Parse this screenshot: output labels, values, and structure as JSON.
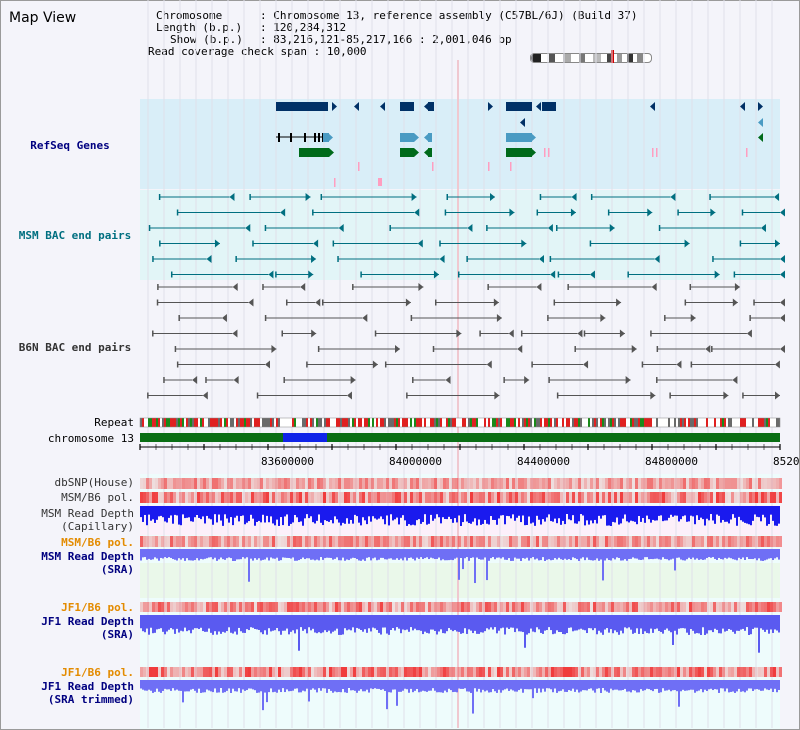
{
  "header": {
    "title": "Map View",
    "chromosome_label": "Chromosome",
    "chromosome_value": ": Chromosome 13, reference assembly (C57BL/6J) (Build 37)",
    "length_label": "Length (b.p.)",
    "length_value": ": 120,284,312",
    "show_label": "Show (b.p.)",
    "show_value": ": 83,216,121-85,217,166 : 2,001,046 bp",
    "span_label": "Read coverage check span",
    "span_value": ": 10,000"
  },
  "tracks": {
    "refseq": "RefSeq Genes",
    "msm_bac": "MSM BAC end pairs",
    "b6n_bac": "B6N BAC end pairs",
    "repeat": "Repeat",
    "chromosome": "chromosome 13",
    "dbsnp": "dbSNP(House)",
    "msm_b6_pol": "MSM/B6 pol.",
    "msm_depth_cap_1": "MSM Read Depth",
    "msm_depth_cap_2": "(Capillary)",
    "msm_b6_pol_2": "MSM/B6 pol.",
    "msm_depth_sra_1": "MSM Read Depth",
    "msm_depth_sra_2": "(SRA)",
    "jf1_b6_pol": "JF1/B6 pol.",
    "jf1_depth_sra_1": "JF1 Read Depth",
    "jf1_depth_sra_2": "(SRA)",
    "jf1_b6_pol_2": "JF1/B6 pol.",
    "jf1_depth_trim_1": "JF1 Read Depth",
    "jf1_depth_trim_2": "(SRA trimmed)"
  },
  "axis": {
    "ticks": [
      "83600000",
      "84000000",
      "84400000",
      "84800000",
      "8520"
    ]
  },
  "colors": {
    "refseq_bg": "#d9eef8",
    "msm_bg": "#e2f5f7",
    "b6n_bg": "#f4f4fa",
    "gene_dark": "#003066",
    "gene_mid": "#4a9bc3",
    "gene_green": "#006a1a",
    "chromosome_green": "#0a6e14",
    "chromosome_highlight": "#0f23e8",
    "msm_color": "#006f80",
    "b6n_color": "#555555",
    "label_navy": "#000080",
    "label_teal": "#006f80",
    "label_orange": "#e38b00",
    "depth_blue": "#1a1aee",
    "depth_periwinkle": "#6f6ff5",
    "pol_red": "#f05050"
  },
  "icons": [
    "chromosome-ideogram-icon"
  ]
}
